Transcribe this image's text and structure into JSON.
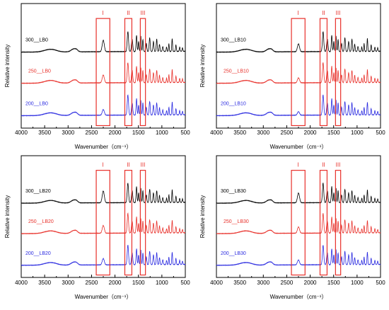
{
  "chart_data": [
    {
      "type": "line",
      "xlabel": "Wavenumber（cm⁻¹）",
      "ylabel": "Relative intensity",
      "xlim": [
        4000,
        500
      ],
      "xticks": [
        4000,
        3500,
        3000,
        2500,
        2000,
        1500,
        1000,
        500
      ],
      "regions": [
        {
          "label": "I",
          "from": 2400,
          "to": 2110
        },
        {
          "label": "II",
          "from": 1790,
          "to": 1640
        },
        {
          "label": "III",
          "from": 1460,
          "to": 1350
        }
      ],
      "series": [
        {
          "name": "300__LB0",
          "color": "#000000"
        },
        {
          "name": "250__LB0",
          "color": "#e8302a"
        },
        {
          "name": "200__LB0",
          "color": "#2a2ae0"
        }
      ]
    },
    {
      "type": "line",
      "xlabel": "Wavenumber（cm⁻¹）",
      "ylabel": "Relative intensity",
      "xlim": [
        4000,
        500
      ],
      "xticks": [
        4000,
        3500,
        3000,
        2500,
        2000,
        1500,
        1000,
        500
      ],
      "regions": [
        {
          "label": "I",
          "from": 2400,
          "to": 2110
        },
        {
          "label": "II",
          "from": 1790,
          "to": 1640
        },
        {
          "label": "III",
          "from": 1460,
          "to": 1350
        }
      ],
      "series": [
        {
          "name": "300__LB10",
          "color": "#000000"
        },
        {
          "name": "250__LB10",
          "color": "#e8302a"
        },
        {
          "name": "200__LB10",
          "color": "#2a2ae0"
        }
      ]
    },
    {
      "type": "line",
      "xlabel": "Wavenumber（cm⁻¹）",
      "ylabel": "Relative intensity",
      "xlim": [
        4000,
        500
      ],
      "xticks": [
        4000,
        3500,
        3000,
        2500,
        2000,
        1500,
        1000,
        500
      ],
      "regions": [
        {
          "label": "I",
          "from": 2400,
          "to": 2110
        },
        {
          "label": "II",
          "from": 1790,
          "to": 1640
        },
        {
          "label": "III",
          "from": 1460,
          "to": 1350
        }
      ],
      "series": [
        {
          "name": "300__LB20",
          "color": "#000000"
        },
        {
          "name": "250__LB20",
          "color": "#e8302a"
        },
        {
          "name": "200__LB20",
          "color": "#2a2ae0"
        }
      ]
    },
    {
      "type": "line",
      "xlabel": "Wavenumber（cm⁻¹）",
      "ylabel": "Relative intensity",
      "xlim": [
        4000,
        500
      ],
      "xticks": [
        4000,
        3500,
        3000,
        2500,
        2000,
        1500,
        1000,
        500
      ],
      "regions": [
        {
          "label": "I",
          "from": 2400,
          "to": 2110
        },
        {
          "label": "II",
          "from": 1790,
          "to": 1640
        },
        {
          "label": "III",
          "from": 1460,
          "to": 1350
        }
      ],
      "series": [
        {
          "name": "300__LB30",
          "color": "#000000"
        },
        {
          "name": "250__LB30",
          "color": "#e8302a"
        },
        {
          "name": "200__LB30",
          "color": "#2a2ae0"
        }
      ]
    }
  ]
}
